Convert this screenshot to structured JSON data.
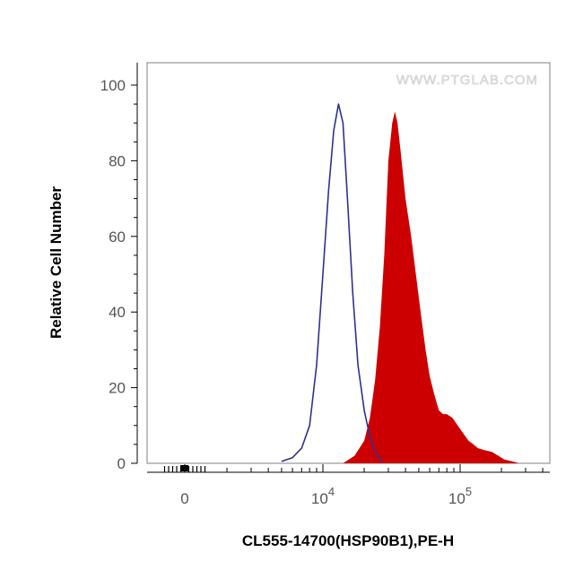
{
  "chart_data": {
    "type": "area",
    "x_scale": "biexponential",
    "xlabel": "CL555-14700(HSP90B1),PE-H",
    "ylabel": "Relative Cell Number",
    "watermark": "WWW.PTGLAB.COM",
    "ylim": [
      0,
      100
    ],
    "y_ticks": [
      {
        "value": 0,
        "label": "0"
      },
      {
        "value": 20,
        "label": "20"
      },
      {
        "value": 40,
        "label": "40"
      },
      {
        "value": 60,
        "label": "60"
      },
      {
        "value": 80,
        "label": "80"
      },
      {
        "value": 100,
        "label": "100"
      }
    ],
    "x_ticks": [
      {
        "value": 0,
        "label": "0"
      },
      {
        "value": 10000,
        "base": "10",
        "exponent": "4"
      },
      {
        "value": 100000,
        "base": "10",
        "exponent": "5"
      }
    ],
    "grid": false,
    "legend": "none",
    "series": [
      {
        "style": "outline",
        "color": "#2e3192",
        "x": [
          5000,
          6000,
          7000,
          8000,
          9000,
          10000,
          11000,
          12000,
          13000,
          14000,
          15000,
          16500,
          18000,
          20000,
          22000,
          24000,
          27000
        ],
        "y": [
          0.5,
          1.5,
          4,
          10,
          26,
          50,
          72,
          88,
          95,
          90,
          72,
          45,
          26,
          14,
          7,
          3,
          0.5
        ]
      },
      {
        "style": "filled",
        "color": "#cc0000",
        "x": [
          14000,
          17000,
          20000,
          22000,
          24000,
          26000,
          28000,
          30000,
          32000,
          33500,
          35000,
          37000,
          40000,
          44000,
          48000,
          52000,
          56000,
          60000,
          65000,
          70000,
          75000,
          80000,
          88000,
          96000,
          105000,
          115000,
          125000,
          135000,
          150000,
          170000,
          190000,
          210000,
          240000,
          270000
        ],
        "y": [
          0,
          2,
          6,
          12,
          22,
          36,
          55,
          80,
          90,
          93,
          90,
          82,
          70,
          60,
          49,
          39,
          30,
          23,
          18,
          14,
          13,
          13,
          12,
          10,
          8,
          6,
          5,
          4,
          3.5,
          3,
          2,
          1,
          0.5,
          0
        ]
      }
    ]
  }
}
